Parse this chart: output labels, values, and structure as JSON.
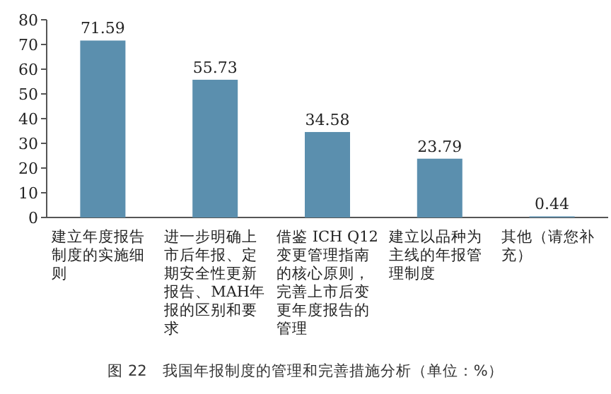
{
  "chart_data": {
    "type": "bar",
    "title": "图 22　我国年报制度的管理和完善措施分析（单位：%）",
    "categories": [
      "建立年度报告制度的实施细则",
      "进一步明确上市后年报、定期安全性更新报告、MAH年报的区别和要求",
      "借鉴 ICH Q12 变更管理指南的核心原则，完善上市后变更年度报告的管理",
      "建立以品种为主线的年报管理制度",
      "其他（请您补充）"
    ],
    "values": [
      71.59,
      55.73,
      34.58,
      23.79,
      0.44
    ],
    "color": "#5b8fae",
    "data_labels": true,
    "ylim": [
      0,
      80
    ],
    "yticks": [
      0,
      10,
      20,
      30,
      40,
      50,
      60,
      70,
      80
    ]
  }
}
